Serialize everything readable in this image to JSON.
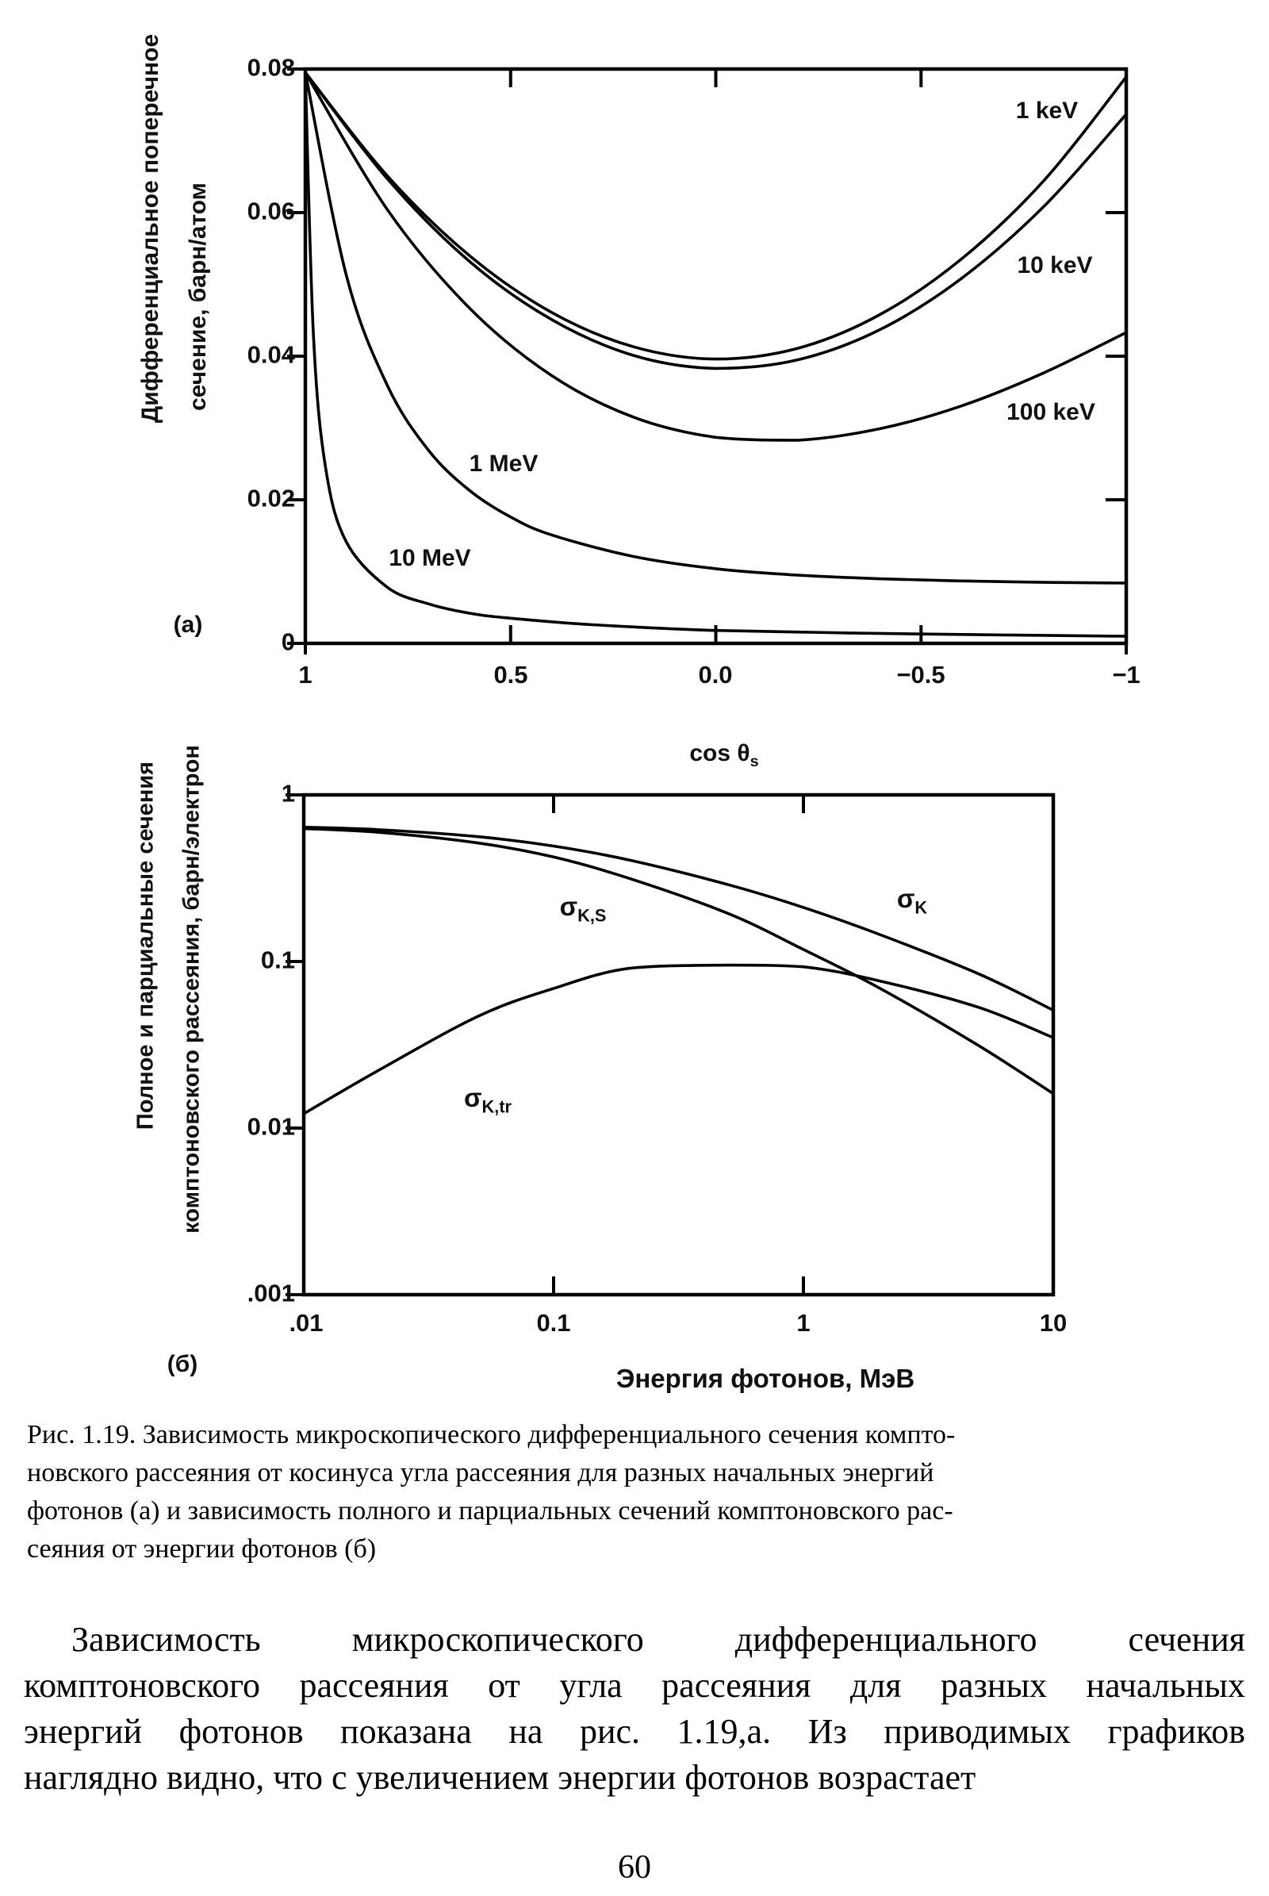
{
  "page": {
    "number": "60",
    "background": "#ffffff",
    "ink": "#000000"
  },
  "figure": {
    "panel_a_marker": "(а)",
    "panel_b_marker": "(б)",
    "caption_lines": [
      "Рис. 1.19. Зависимость микроскопического дифференциального сечения компто-",
      "новского рассеяния от косинуса  угла рассеяния для разных начальных энергий",
      "фотонов (а) и зависимость полного и парциальных сечений комптоновского рас-",
      "сеяния от энергии фотонов (б)"
    ]
  },
  "body_lines": [
    "Зависимость  микроскопического  дифференциального  сечения",
    "комптоновского рассеяния от угла рассеяния для разных начальных",
    "энергий фотонов показана на рис. 1.19,а. Из приводимых графиков",
    "наглядно видно, что с увеличением энергии фотонов возрастает"
  ],
  "chart_data": [
    {
      "type": "line",
      "panel": "а",
      "title": "",
      "xlabel": "cos θ_s",
      "xlabel_main": "cos θ",
      "xlabel_sub": "s",
      "ylabel": "Дифференциальное поперечное сечение, барн/атом",
      "ylabel_line1": "Дифференциальное поперечное",
      "ylabel_line2": "сечение, барн/атом",
      "x_scale": "linear",
      "y_scale": "linear",
      "xlim": [
        1,
        -1
      ],
      "ylim": [
        0,
        0.08
      ],
      "grid": false,
      "legend": "labels-on-curves",
      "x_ticks": [
        1,
        0.5,
        0,
        -0.5,
        -1
      ],
      "x_tick_labels": [
        "1",
        "0.5",
        "0.0",
        "−0.5",
        "−1"
      ],
      "y_ticks": [
        0,
        0.02,
        0.04,
        0.06,
        0.08
      ],
      "y_tick_labels": [
        "0",
        "0.02",
        "0.04",
        "0.06",
        "0.08"
      ],
      "series": [
        {
          "name": "1 keV",
          "points": [
            [
              1,
              0.0795
            ],
            [
              0.8,
              0.0651
            ],
            [
              0.6,
              0.054
            ],
            [
              0.4,
              0.0461
            ],
            [
              0.2,
              0.0413
            ],
            [
              0,
              0.0396
            ],
            [
              -0.2,
              0.0411
            ],
            [
              -0.4,
              0.0458
            ],
            [
              -0.6,
              0.0536
            ],
            [
              -0.8,
              0.0645
            ],
            [
              -1,
              0.0789
            ]
          ]
        },
        {
          "name": "10 keV",
          "points": [
            [
              1,
              0.0795
            ],
            [
              0.8,
              0.0647
            ],
            [
              0.6,
              0.0532
            ],
            [
              0.4,
              0.0451
            ],
            [
              0.2,
              0.0401
            ],
            [
              0,
              0.0383
            ],
            [
              -0.2,
              0.0395
            ],
            [
              -0.4,
              0.0437
            ],
            [
              -0.6,
              0.0509
            ],
            [
              -0.8,
              0.0609
            ],
            [
              -1,
              0.0737
            ]
          ]
        },
        {
          "name": "100 keV",
          "points": [
            [
              1,
              0.0795
            ],
            [
              0.8,
              0.0604
            ],
            [
              0.6,
              0.0467
            ],
            [
              0.4,
              0.0373
            ],
            [
              0.2,
              0.0315
            ],
            [
              0,
              0.0287
            ],
            [
              -0.2,
              0.0283
            ],
            [
              -0.4,
              0.0299
            ],
            [
              -0.6,
              0.0331
            ],
            [
              -0.8,
              0.0377
            ],
            [
              -1,
              0.0433
            ]
          ]
        },
        {
          "name": "1 MeV",
          "points": [
            [
              1,
              0.0795
            ],
            [
              0.9,
              0.0512
            ],
            [
              0.8,
              0.0359
            ],
            [
              0.7,
              0.0269
            ],
            [
              0.6,
              0.0213
            ],
            [
              0.5,
              0.0176
            ],
            [
              0.4,
              0.0151
            ],
            [
              0.2,
              0.0121
            ],
            [
              0,
              0.0104
            ],
            [
              -0.2,
              0.0095
            ],
            [
              -0.4,
              0.009
            ],
            [
              -0.6,
              0.0087
            ],
            [
              -0.8,
              0.0085
            ],
            [
              -1,
              0.0084
            ]
          ]
        },
        {
          "name": "10 MeV",
          "points": [
            [
              1,
              0.0795
            ],
            [
              0.98,
              0.0425
            ],
            [
              0.95,
              0.0242
            ],
            [
              0.9,
              0.0141
            ],
            [
              0.8,
              0.0078
            ],
            [
              0.7,
              0.0055
            ],
            [
              0.6,
              0.0042
            ],
            [
              0.5,
              0.0035
            ],
            [
              0.3,
              0.0026
            ],
            [
              0,
              0.0018
            ],
            [
              -0.5,
              0.0013
            ],
            [
              -1,
              0.001
            ]
          ]
        }
      ]
    },
    {
      "type": "line",
      "panel": "б",
      "title": "",
      "xlabel": "Энергия фотонов, МэВ",
      "ylabel": "Полное и парциальные сечения комптоновского рассеяния, барн/электрон",
      "ylabel_line1": "Полное и парциальные сечения",
      "ylabel_line2": "комптоновского рассеяния, барн/электрон",
      "x_scale": "log",
      "y_scale": "log",
      "xlim": [
        0.01,
        10
      ],
      "ylim": [
        0.001,
        1
      ],
      "grid": false,
      "legend": "labels-on-curves",
      "x_ticks": [
        0.01,
        0.1,
        1,
        10
      ],
      "x_tick_labels": [
        ".01",
        "0.1",
        "1",
        "10"
      ],
      "y_ticks": [
        0.001,
        0.01,
        0.1,
        1
      ],
      "y_tick_labels": [
        ".001",
        "0.01",
        "0.1",
        "1"
      ],
      "series": [
        {
          "name": "σ_K",
          "label_base": "σ",
          "label_sub": "K",
          "points": [
            [
              0.01,
              0.64
            ],
            [
              0.02,
              0.618
            ],
            [
              0.05,
              0.561
            ],
            [
              0.1,
              0.493
            ],
            [
              0.2,
              0.407
            ],
            [
              0.5,
              0.289
            ],
            [
              1,
              0.211
            ],
            [
              2,
              0.146
            ],
            [
              5,
              0.0846
            ],
            [
              10,
              0.051
            ]
          ]
        },
        {
          "name": "σ_K,S",
          "label_base": "σ",
          "label_sub": "K,S",
          "points": [
            [
              0.01,
              0.628
            ],
            [
              0.02,
              0.596
            ],
            [
              0.05,
              0.514
            ],
            [
              0.1,
              0.424
            ],
            [
              0.2,
              0.316
            ],
            [
              0.5,
              0.194
            ],
            [
              1,
              0.118
            ],
            [
              2,
              0.0697
            ],
            [
              5,
              0.0314
            ],
            [
              10,
              0.0161
            ]
          ]
        },
        {
          "name": "σ_K,tr",
          "label_base": "σ",
          "label_sub": "K,tr",
          "points": [
            [
              0.01,
              0.0122
            ],
            [
              0.02,
              0.0223
            ],
            [
              0.05,
              0.047
            ],
            [
              0.1,
              0.0689
            ],
            [
              0.2,
              0.0909
            ],
            [
              0.5,
              0.0951
            ],
            [
              1,
              0.0929
            ],
            [
              2,
              0.0767
            ],
            [
              5,
              0.0532
            ],
            [
              10,
              0.0349
            ]
          ]
        }
      ]
    }
  ]
}
